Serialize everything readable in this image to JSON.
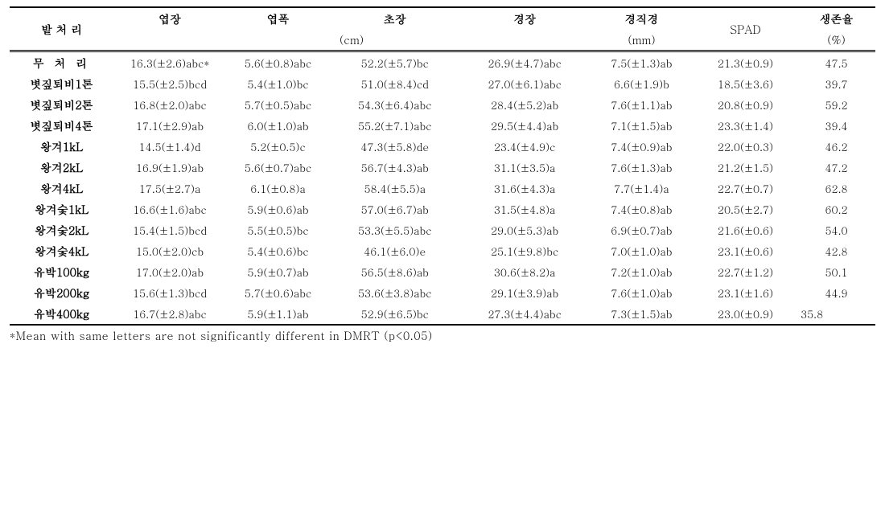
{
  "header": {
    "treatment": "밭 처 리",
    "leafLength": "엽장",
    "leafWidth": "엽폭",
    "plantHeight": "초장",
    "stemLength": "경장",
    "stemDiameter": "경직경",
    "spad": "SPAD",
    "survival": "생존율",
    "cmUnit": "(cm)",
    "mmUnit": "(mm)",
    "pctUnit": "(%)"
  },
  "rows": [
    {
      "t": "무 처 리",
      "a": "16.3(±2.6)abc*",
      "b": "5.6(±0.8)abc",
      "c": "52.2(±5.7)bc",
      "d": "26.9(±4.7)abc",
      "e": "7.5(±1.3)ab",
      "f": "21.3(±0.9)",
      "g": "47.5",
      "wide": true
    },
    {
      "t": "볏짚퇴비1톤",
      "a": "15.5(±2.5)bcd",
      "b": "5.4(±1.0)bc",
      "c": "51.0(±8.4)cd",
      "d": "27.0(±6.1)abc",
      "e": "6.6(±1.9)b",
      "f": "18.5(±3.6)",
      "g": "39.7"
    },
    {
      "t": "볏짚퇴비2톤",
      "a": "16.8(±2.0)abc",
      "b": "5.7(±0.5)abc",
      "c": "54.3(±6.4)abc",
      "d": "28.4(±5.2)ab",
      "e": "7.6(±1.1)ab",
      "f": "20.8(±0.9)",
      "g": "59.2"
    },
    {
      "t": "볏짚퇴비4톤",
      "a": "17.1(±2.9)ab",
      "b": "6.0(±1.0)ab",
      "c": "55.2(±7.1)abc",
      "d": "29.5(±4.4)ab",
      "e": "7.1(±1.5)ab",
      "f": "23.3(±1.4)",
      "g": "39.4"
    },
    {
      "t": "왕겨1kL",
      "a": "14.5(±1.4)d",
      "b": "5.2(±0.5)c",
      "c": "47.3(±5.8)de",
      "d": "23.4(±4.9)c",
      "e": "7.4(±0.9)ab",
      "f": "22.0(±0.3)",
      "g": "46.2"
    },
    {
      "t": "왕겨2kL",
      "a": "16.9(±1.9)ab",
      "b": "5.6(±0.7)abc",
      "c": "56.7(±4.3)ab",
      "d": "31.1(±3.5)a",
      "e": "7.6(±1.3)ab",
      "f": "21.2(±1.5)",
      "g": "47.2"
    },
    {
      "t": "왕겨4kL",
      "a": "17.5(±2.7)a",
      "b": "6.1(±0.8)a",
      "c": "58.4(±5.5)a",
      "d": "31.6(±4.3)a",
      "e": "7.7(±1.4)a",
      "f": "22.7(±0.7)",
      "g": "62.8"
    },
    {
      "t": "왕겨숯1kL",
      "a": "16.6(±1.6)abc",
      "b": "5.9(±0.6)ab",
      "c": "57.0(±6.7)ab",
      "d": "31.5(±4.8)a",
      "e": "7.4(±0.8)ab",
      "f": "20.5(±2.7)",
      "g": "60.2"
    },
    {
      "t": "왕겨숯2kL",
      "a": "15.4(±1.5)bcd",
      "b": "5.5(±0.5)bc",
      "c": "53.3(±5.5)abc",
      "d": "29.0(±5.3)ab",
      "e": "6.9(±0.7)ab",
      "f": "21.6(±0.6)",
      "g": "54.0"
    },
    {
      "t": "왕겨숯4kL",
      "a": "15.0(±2.0)cb",
      "b": "5.4(±0.6)bc",
      "c": "46.1(±6.0)e",
      "d": "25.1(±9.8)bc",
      "e": "7.0(±1.0)ab",
      "f": "23.1(±0.6)",
      "g": "42.8"
    },
    {
      "t": "유박100kg",
      "a": "17.0(±2.0)ab",
      "b": "5.9(±0.7)ab",
      "c": "56.5(±8.6)ab",
      "d": "30.6(±8.2)a",
      "e": "7.2(±1.0)ab",
      "f": "22.7(±1.2)",
      "g": "50.1"
    },
    {
      "t": "유박200kg",
      "a": "15.6(±1.3)bcd",
      "b": "5.7(±0.6)abc",
      "c": "53.6(±3.8)abc",
      "d": "29.1(±3.9)ab",
      "e": "7.6(±1.0)ab",
      "f": "23.1(±1.6)",
      "g": "44.9"
    },
    {
      "t": "유박400kg",
      "a": "16.7(±2.8)abc",
      "b": "5.9(±1.1)ab",
      "c": "52.9(±6.5)bc",
      "d": "27.3(±4.4)abc",
      "e": "7.3(±1.5)ab",
      "f": "23.0(±0.9)",
      "g": "35.8"
    }
  ],
  "footnote": "*Mean with same letters are not significantly different in DMRT (p<0.05)"
}
